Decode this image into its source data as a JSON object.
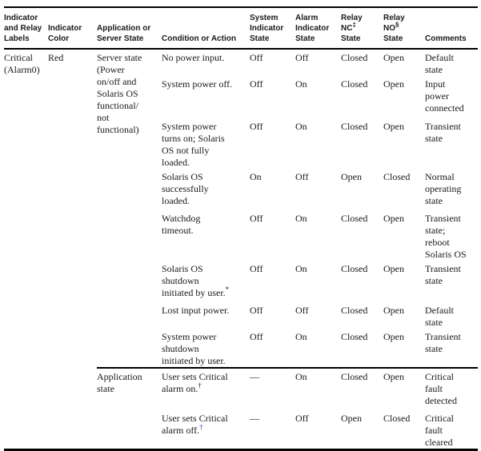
{
  "colors": {
    "text": "#1a1a1a",
    "rule": "#000000",
    "footnote_link": "#3333cc"
  },
  "table": {
    "headers": [
      {
        "name": "indicator-and-relay-labels",
        "lines": [
          {
            "t": "Indicator"
          },
          {
            "t": "and Relay"
          },
          {
            "t": "Labels"
          }
        ]
      },
      {
        "name": "indicator-color",
        "lines": [
          {
            "t": "Indicator"
          },
          {
            "t": "Color"
          }
        ]
      },
      {
        "name": "application-or-server-state",
        "lines": [
          {
            "t": "Application or"
          },
          {
            "t": "Server State"
          }
        ]
      },
      {
        "name": "condition-or-action",
        "lines": [
          {
            "t": "Condition or Action"
          }
        ]
      },
      {
        "name": "system-indicator-state",
        "lines": [
          {
            "t": "System"
          },
          {
            "t": "Indicator"
          },
          {
            "t": "State"
          }
        ]
      },
      {
        "name": "alarm-indicator-state",
        "lines": [
          {
            "t": "Alarm"
          },
          {
            "t": "Indicator"
          },
          {
            "t": "State"
          }
        ]
      },
      {
        "name": "relay-nc-state",
        "lines": [
          {
            "t": "Relay"
          },
          {
            "t": "NC",
            "sup": "‡"
          },
          {
            "t": "State"
          }
        ]
      },
      {
        "name": "relay-no-state",
        "lines": [
          {
            "t": "Relay"
          },
          {
            "t": "NO",
            "sup": "§"
          },
          {
            "t": "State"
          }
        ]
      },
      {
        "name": "comments",
        "lines": [
          {
            "t": "Comments"
          }
        ]
      }
    ],
    "rows": [
      {
        "cells": [
          {
            "name": "indicator-label",
            "text": "Critical\n(Alarm0)",
            "rowspan": 10
          },
          {
            "name": "indicator-color",
            "text": "Red",
            "rowspan": 10
          },
          {
            "name": "server-state",
            "text": "Server state\n(Power\non/off and\nSolaris OS\nfunctional/\nnot\nfunctional)",
            "rowspan": 8
          },
          {
            "name": "condition",
            "text": "No power input."
          },
          {
            "name": "system-indicator",
            "text": "Off"
          },
          {
            "name": "alarm-indicator",
            "text": "Off"
          },
          {
            "name": "relay-nc",
            "text": "Closed"
          },
          {
            "name": "relay-no",
            "text": "Open"
          },
          {
            "name": "comments",
            "text": "Default\nstate"
          }
        ]
      },
      {
        "cells": [
          {
            "name": "condition",
            "text": "System power off."
          },
          {
            "name": "system-indicator",
            "text": "Off"
          },
          {
            "name": "alarm-indicator",
            "text": "On"
          },
          {
            "name": "relay-nc",
            "text": "Closed"
          },
          {
            "name": "relay-no",
            "text": "Open"
          },
          {
            "name": "comments",
            "text": "Input\npower\nconnected"
          }
        ]
      },
      {
        "cells": [
          {
            "name": "condition",
            "text": "System power\nturns on; Solaris\nOS not fully\nloaded."
          },
          {
            "name": "system-indicator",
            "text": "Off"
          },
          {
            "name": "alarm-indicator",
            "text": "On"
          },
          {
            "name": "relay-nc",
            "text": "Closed"
          },
          {
            "name": "relay-no",
            "text": "Open"
          },
          {
            "name": "comments",
            "text": "Transient\nstate"
          }
        ]
      },
      {
        "cells": [
          {
            "name": "condition",
            "text": "Solaris OS\nsuccessfully\nloaded."
          },
          {
            "name": "system-indicator",
            "text": "On"
          },
          {
            "name": "alarm-indicator",
            "text": "Off"
          },
          {
            "name": "relay-nc",
            "text": "Open"
          },
          {
            "name": "relay-no",
            "text": "Closed"
          },
          {
            "name": "comments",
            "text": "Normal\noperating\nstate"
          }
        ]
      },
      {
        "cells": [
          {
            "name": "condition",
            "text": "Watchdog\ntimeout."
          },
          {
            "name": "system-indicator",
            "text": "Off"
          },
          {
            "name": "alarm-indicator",
            "text": "On"
          },
          {
            "name": "relay-nc",
            "text": "Closed"
          },
          {
            "name": "relay-no",
            "text": "Open"
          },
          {
            "name": "comments",
            "text": "Transient\nstate;\nreboot\nSolaris OS"
          }
        ]
      },
      {
        "cells": [
          {
            "name": "condition",
            "text": "Solaris OS\nshutdown\ninitiated by user.",
            "sup": "*"
          },
          {
            "name": "system-indicator",
            "text": "Off"
          },
          {
            "name": "alarm-indicator",
            "text": "On"
          },
          {
            "name": "relay-nc",
            "text": "Closed"
          },
          {
            "name": "relay-no",
            "text": "Open"
          },
          {
            "name": "comments",
            "text": "Transient\nstate"
          }
        ]
      },
      {
        "cells": [
          {
            "name": "condition",
            "text": "Lost input power."
          },
          {
            "name": "system-indicator",
            "text": "Off"
          },
          {
            "name": "alarm-indicator",
            "text": "Off"
          },
          {
            "name": "relay-nc",
            "text": "Closed"
          },
          {
            "name": "relay-no",
            "text": "Open"
          },
          {
            "name": "comments",
            "text": "Default\nstate"
          }
        ]
      },
      {
        "cells": [
          {
            "name": "condition",
            "text": "System power\nshutdown\ninitiated by user."
          },
          {
            "name": "system-indicator",
            "text": "Off"
          },
          {
            "name": "alarm-indicator",
            "text": "On"
          },
          {
            "name": "relay-nc",
            "text": "Closed"
          },
          {
            "name": "relay-no",
            "text": "Open"
          },
          {
            "name": "comments",
            "text": "Transient\nstate"
          }
        ]
      },
      {
        "section_start": true,
        "cells": [
          {
            "name": "application-state",
            "text": "Application\nstate",
            "rowspan": 2
          },
          {
            "name": "condition",
            "text": "User sets Critical\nalarm on.",
            "sup": "†"
          },
          {
            "name": "system-indicator",
            "text": "—"
          },
          {
            "name": "alarm-indicator",
            "text": "On"
          },
          {
            "name": "relay-nc",
            "text": "Closed"
          },
          {
            "name": "relay-no",
            "text": "Open"
          },
          {
            "name": "comments",
            "text": "Critical\nfault\ndetected"
          }
        ]
      },
      {
        "cells": [
          {
            "name": "condition",
            "text": "User sets Critical\nalarm off.",
            "sup": "†",
            "sup_link": true
          },
          {
            "name": "system-indicator",
            "text": "—"
          },
          {
            "name": "alarm-indicator",
            "text": "Off"
          },
          {
            "name": "relay-nc",
            "text": "Open"
          },
          {
            "name": "relay-no",
            "text": "Closed"
          },
          {
            "name": "comments",
            "text": "Critical\nfault\ncleared"
          }
        ]
      }
    ]
  }
}
